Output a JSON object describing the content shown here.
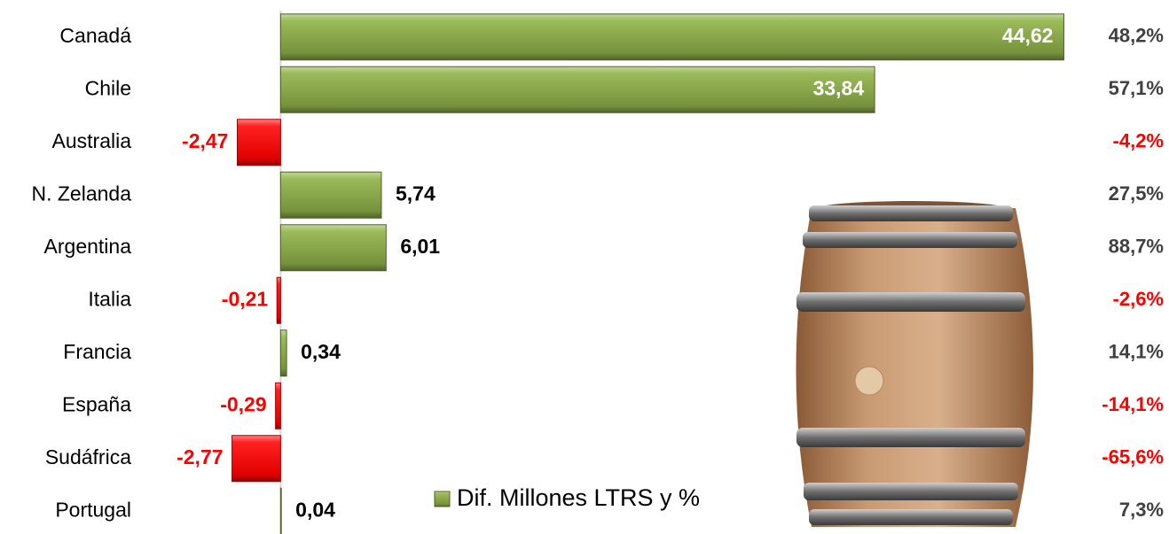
{
  "chart_data": {
    "type": "barh",
    "categories": [
      "Canadá",
      "Chile",
      "Australia",
      "N. Zelanda",
      "Argentina",
      "Italia",
      "Francia",
      "España",
      "Sudáfrica",
      "Portugal"
    ],
    "series": [
      {
        "name": "Dif. Millones LTRS y %",
        "color": "#76923c",
        "negative_color": "#ff0000",
        "values": [
          44.62,
          33.84,
          -2.47,
          5.74,
          6.01,
          -0.21,
          0.34,
          -0.29,
          -2.77,
          0.04
        ],
        "value_labels": [
          "44,62",
          "33,84",
          "-2,47",
          "5,74",
          "6,01",
          "-0,21",
          "0,34",
          "-0,29",
          "-2,77",
          "0,04"
        ]
      }
    ],
    "percentages": [
      48.2,
      57.1,
      -4.2,
      27.5,
      88.7,
      -2.6,
      14.1,
      -14.1,
      -65.6,
      7.3
    ],
    "percentage_labels": [
      "48,2%",
      "57,1%",
      "-4,2%",
      "27,5%",
      "88,7%",
      "-2,6%",
      "14,1%",
      "-14,1%",
      "-65,6%",
      "7,3%"
    ],
    "xlim": [
      -3,
      45
    ]
  }
}
